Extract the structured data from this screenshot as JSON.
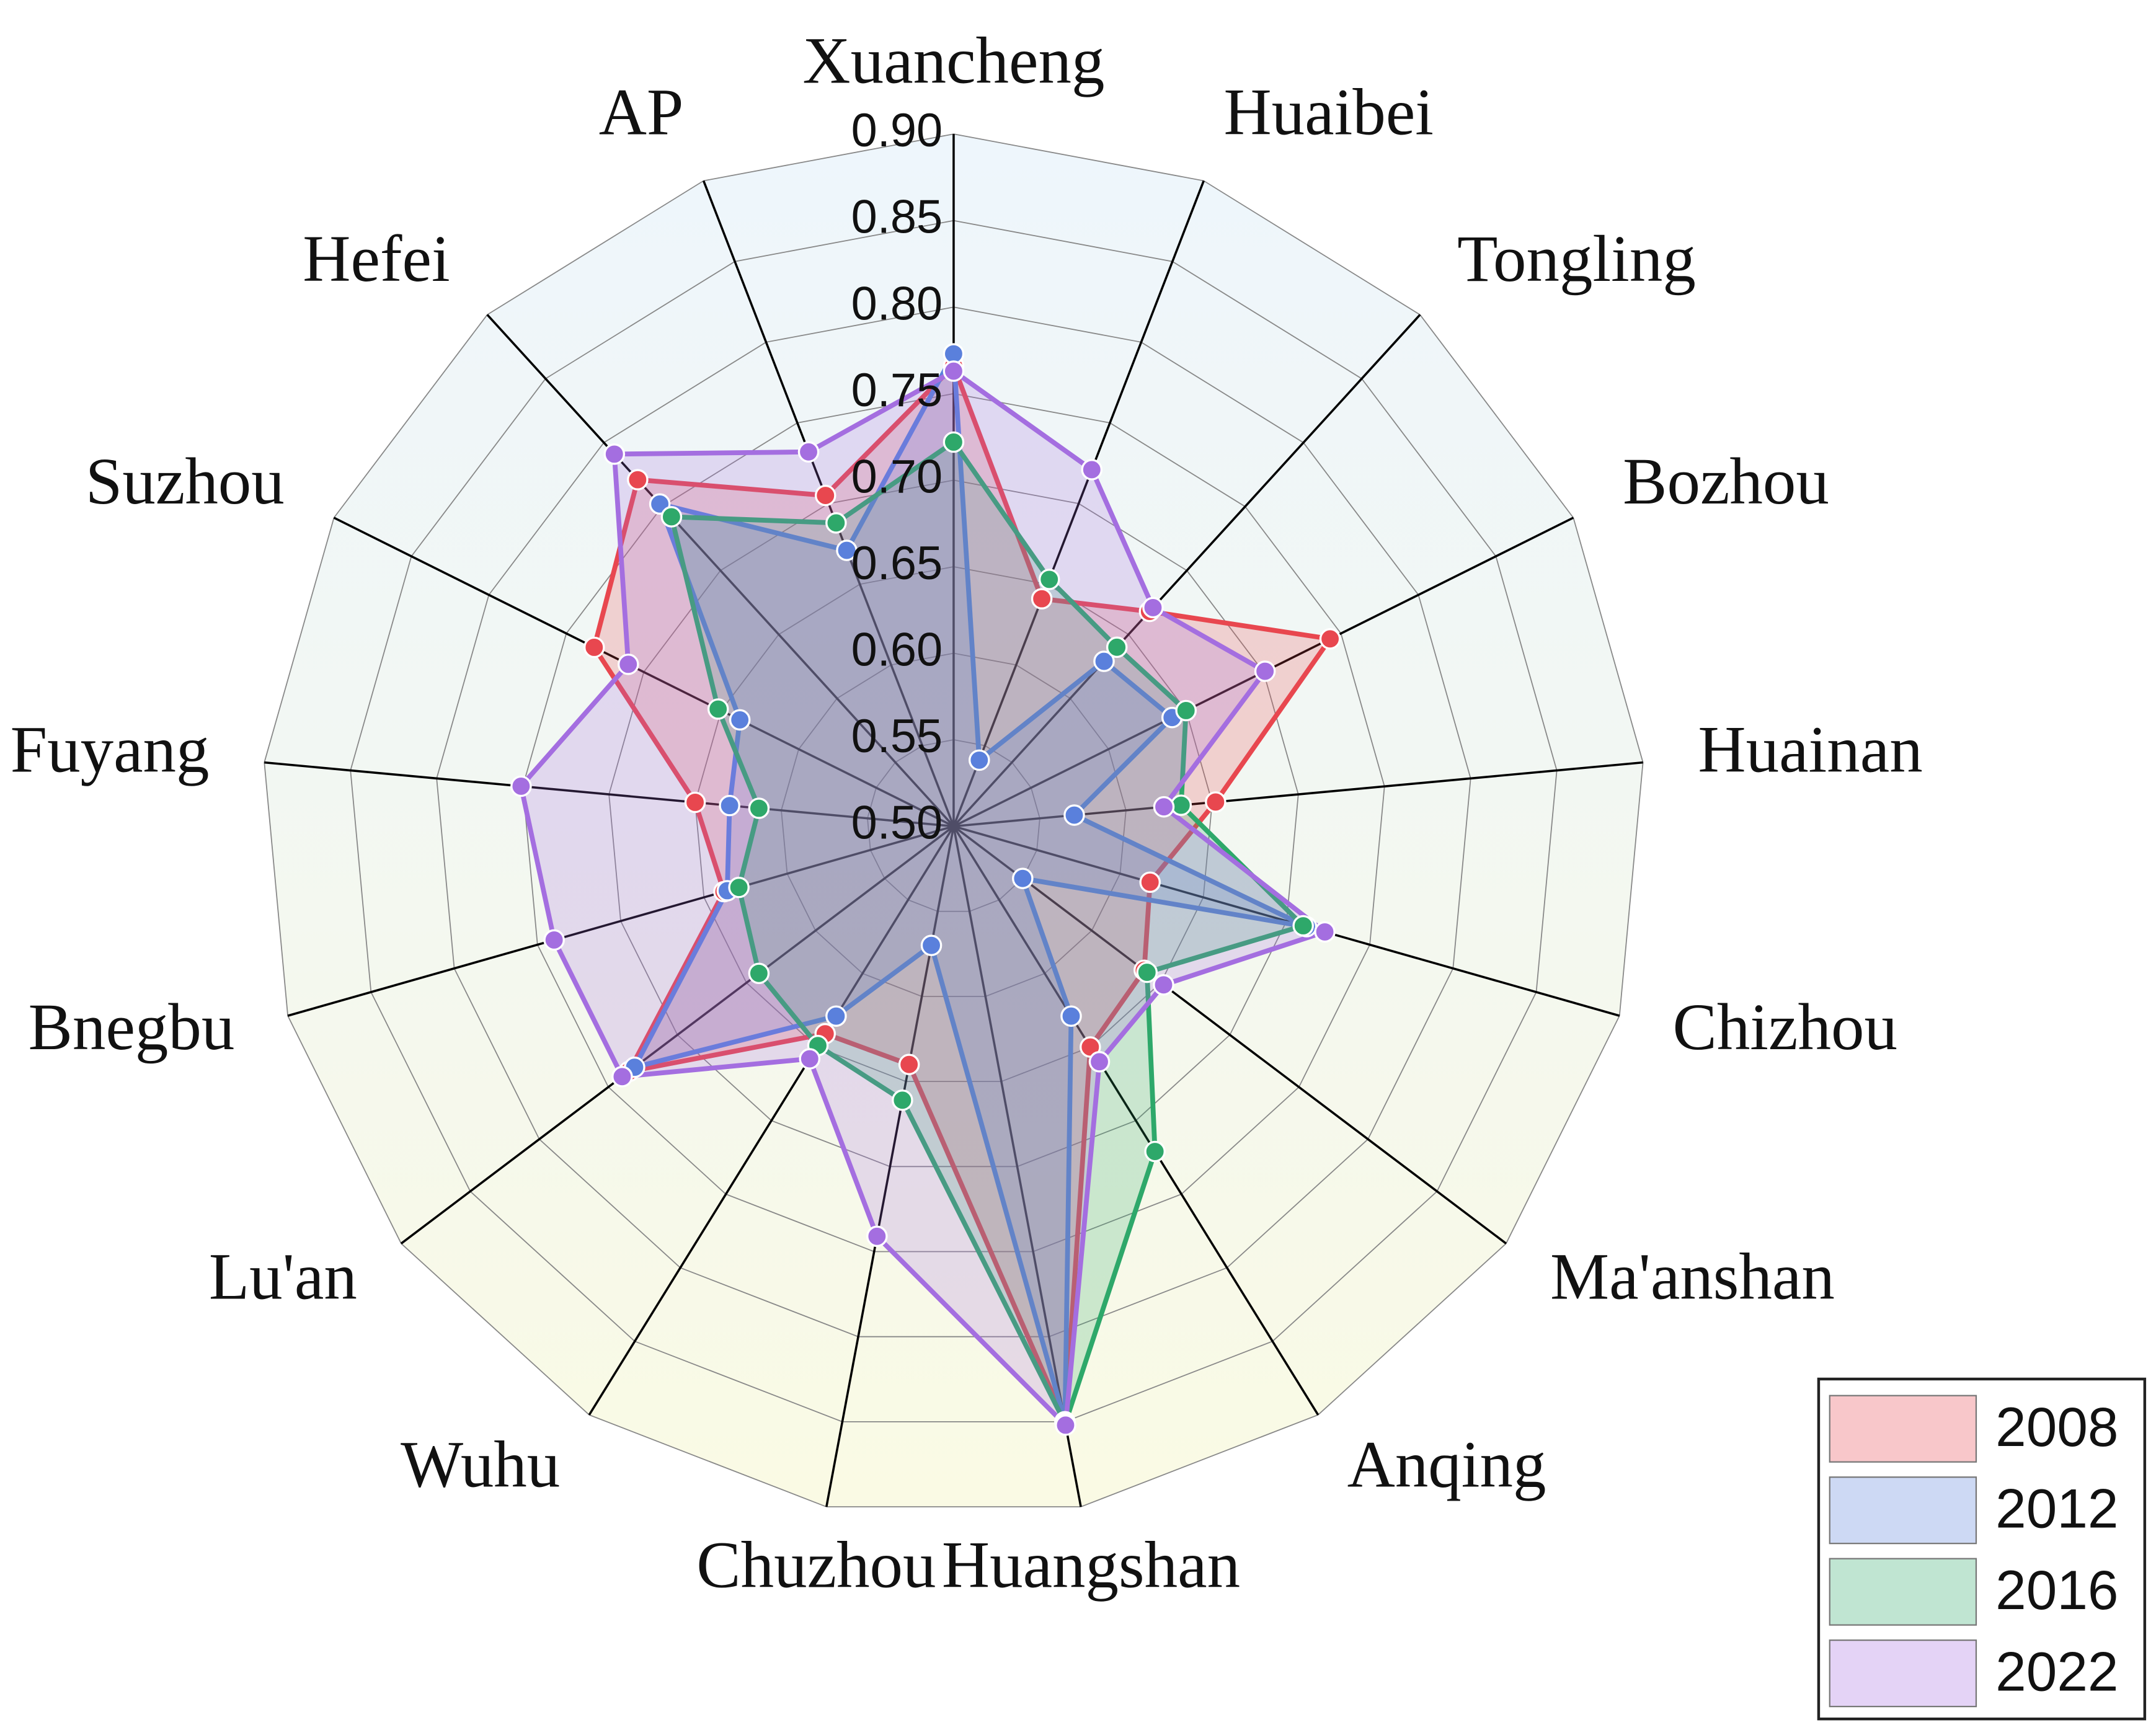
{
  "chart_data": {
    "type": "radar",
    "categories": [
      "Xuancheng",
      "Huaibei",
      "Tongling",
      "Bozhou",
      "Huainan",
      "Chizhou",
      "Ma'anshan",
      "Anqing",
      "Huangshan",
      "Chuzhou",
      "Wuhu",
      "Lu'an",
      "Bnegbu",
      "Fuyang",
      "Suzhou",
      "Hefei",
      "AP"
    ],
    "ylim": [
      0.5,
      0.9
    ],
    "yticks": [
      {
        "value": 0.5,
        "label": "0.50"
      },
      {
        "value": 0.55,
        "label": "0.55"
      },
      {
        "value": 0.6,
        "label": "0.60"
      },
      {
        "value": 0.65,
        "label": "0.65"
      },
      {
        "value": 0.7,
        "label": "0.70"
      },
      {
        "value": 0.75,
        "label": "0.75"
      },
      {
        "value": 0.8,
        "label": "0.80"
      },
      {
        "value": 0.85,
        "label": "0.85"
      },
      {
        "value": 0.9,
        "label": "0.90"
      }
    ],
    "grid": true,
    "legend": "lower-right",
    "series": [
      {
        "name": "2008",
        "color": "#e8474f",
        "values": [
          0.766,
          0.641,
          0.668,
          0.743,
          0.652,
          0.618,
          0.638,
          0.65,
          0.85,
          0.64,
          0.641,
          0.735,
          0.638,
          0.65,
          0.732,
          0.771,
          0.705
        ]
      },
      {
        "name": "2012",
        "color": "#5a80dc",
        "values": [
          0.773,
          0.541,
          0.629,
          0.641,
          0.57,
          0.712,
          0.55,
          0.629,
          0.85,
          0.57,
          0.629,
          0.731,
          0.636,
          0.63,
          0.638,
          0.752,
          0.671
        ]
      },
      {
        "name": "2016",
        "color": "#2ea86a",
        "values": [
          0.722,
          0.653,
          0.64,
          0.65,
          0.632,
          0.71,
          0.64,
          0.721,
          0.851,
          0.661,
          0.649,
          0.641,
          0.629,
          0.613,
          0.652,
          0.742,
          0.688
        ]
      },
      {
        "name": "2022",
        "color": "#a46ee0",
        "values": [
          0.763,
          0.721,
          0.671,
          0.701,
          0.622,
          0.723,
          0.652,
          0.66,
          0.852,
          0.741,
          0.658,
          0.74,
          0.74,
          0.751,
          0.71,
          0.791,
          0.732
        ]
      }
    ]
  }
}
